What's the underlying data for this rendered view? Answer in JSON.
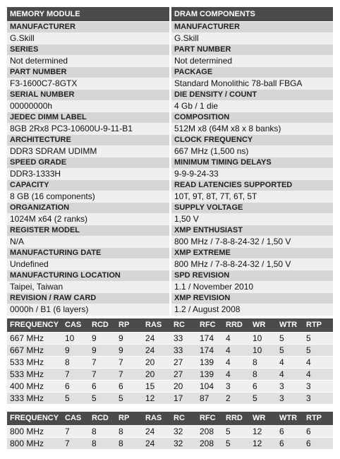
{
  "header": [
    "MEMORY MODULE",
    "DRAM COMPONENTS"
  ],
  "columns": [
    [
      {
        "label": "MANUFACTURER",
        "value": "G.Skill"
      },
      {
        "label": "SERIES",
        "value": "Not determined"
      },
      {
        "label": "PART NUMBER",
        "value": "F3-1600C7-8GTX"
      },
      {
        "label": "SERIAL NUMBER",
        "value": "00000000h"
      },
      {
        "label": "JEDEC DIMM LABEL",
        "value": "8GB 2Rx8 PC3-10600U-9-11-B1"
      },
      {
        "label": "ARCHITECTURE",
        "value": "DDR3 SDRAM UDIMM"
      },
      {
        "label": "SPEED GRADE",
        "value": "DDR3-1333H"
      },
      {
        "label": "CAPACITY",
        "value": "8 GB (16 components)"
      },
      {
        "label": "ORGANIZATION",
        "value": "1024M x64 (2 ranks)"
      },
      {
        "label": "REGISTER MODEL",
        "value": "N/A"
      },
      {
        "label": "MANUFACTURING DATE",
        "value": "Undefined"
      },
      {
        "label": "MANUFACTURING LOCATION",
        "value": "Taipei, Taiwan"
      },
      {
        "label": "REVISION / RAW CARD",
        "value": "0000h / B1 (6 layers)"
      }
    ],
    [
      {
        "label": "MANUFACTURER",
        "value": "G.Skill"
      },
      {
        "label": "PART NUMBER",
        "value": "Not determined"
      },
      {
        "label": "PACKAGE",
        "value": "Standard Monolithic 78-ball FBGA"
      },
      {
        "label": "DIE DENSITY / COUNT",
        "value": "4 Gb / 1 die"
      },
      {
        "label": "COMPOSITION",
        "value": "512M x8 (64M x8 x 8 banks)"
      },
      {
        "label": "CLOCK FREQUENCY",
        "value": "667 MHz (1,500 ns)"
      },
      {
        "label": "MINIMUM TIMING DELAYS",
        "value": "9-9-9-24-33"
      },
      {
        "label": "READ LATENCIES SUPPORTED",
        "value": "10T, 9T, 8T, 7T, 6T, 5T"
      },
      {
        "label": "SUPPLY VOLTAGE",
        "value": "1,50 V"
      },
      {
        "label": "XMP ENTHUSIAST",
        "value": "800 MHz / 7-8-8-24-32 / 1,50 V"
      },
      {
        "label": "XMP EXTREME",
        "value": "800 MHz / 7-8-8-24-32 / 1,50 V"
      },
      {
        "label": "SPD REVISION",
        "value": "1.1 / November 2010"
      },
      {
        "label": "XMP REVISION",
        "value": "1.2 / August 2008"
      }
    ]
  ],
  "tables": [
    {
      "header": [
        "FREQUENCY",
        "CAS",
        "RCD",
        "RP",
        "RAS",
        "RC",
        "RFC",
        "RRD",
        "WR",
        "WTR",
        "RTP"
      ],
      "rows": [
        [
          "667 MHz",
          "10",
          "9",
          "9",
          "24",
          "33",
          "174",
          "4",
          "10",
          "5",
          "5"
        ],
        [
          "667 MHz",
          "9",
          "9",
          "9",
          "24",
          "33",
          "174",
          "4",
          "10",
          "5",
          "5"
        ],
        [
          "533 MHz",
          "8",
          "7",
          "7",
          "20",
          "27",
          "139",
          "4",
          "8",
          "4",
          "4"
        ],
        [
          "533 MHz",
          "7",
          "7",
          "7",
          "20",
          "27",
          "139",
          "4",
          "8",
          "4",
          "4"
        ],
        [
          "400 MHz",
          "6",
          "6",
          "6",
          "15",
          "20",
          "104",
          "3",
          "6",
          "3",
          "3"
        ],
        [
          "333 MHz",
          "5",
          "5",
          "5",
          "12",
          "17",
          "87",
          "2",
          "5",
          "3",
          "3"
        ]
      ]
    },
    {
      "header": [
        "FREQUENCY",
        "CAS",
        "RCD",
        "RP",
        "RAS",
        "RC",
        "RFC",
        "RRD",
        "WR",
        "WTR",
        "RTP"
      ],
      "rows": [
        [
          "800 MHz",
          "7",
          "8",
          "8",
          "24",
          "32",
          "208",
          "5",
          "12",
          "6",
          "6"
        ],
        [
          "800 MHz",
          "7",
          "8",
          "8",
          "24",
          "32",
          "208",
          "5",
          "12",
          "6",
          "6"
        ]
      ]
    }
  ]
}
